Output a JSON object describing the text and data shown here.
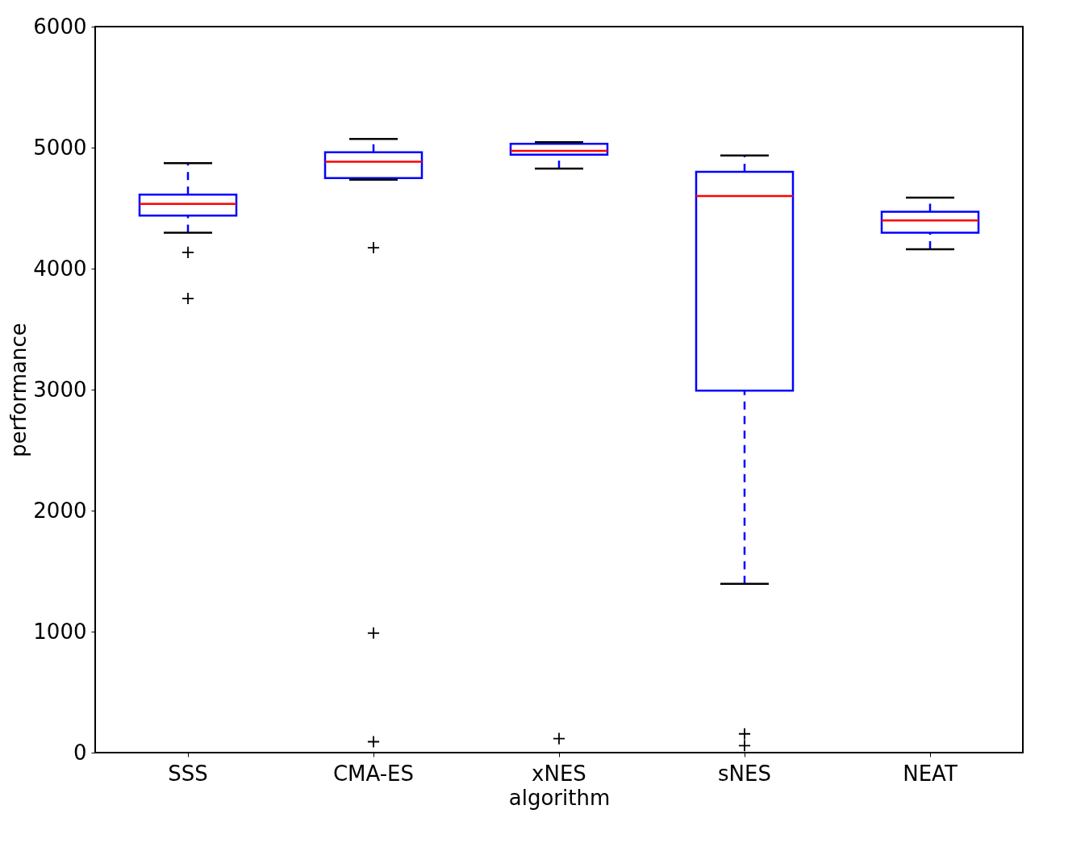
{
  "chart_data": {
    "type": "box",
    "xlabel": "algorithm",
    "ylabel": "performance",
    "categories": [
      "SSS",
      "CMA-ES",
      "xNES",
      "sNES",
      "NEAT"
    ],
    "boxes": [
      {
        "low": 4296,
        "q1": 4438,
        "median": 4535,
        "q3": 4612,
        "high": 4871,
        "outliers": [
          4134,
          3753
        ]
      },
      {
        "low": 4735,
        "q1": 4748,
        "median": 4884,
        "q3": 4961,
        "high": 5071,
        "outliers": [
          4173,
          988,
          90
        ]
      },
      {
        "low": 4826,
        "q1": 4942,
        "median": 4974,
        "q3": 5032,
        "high": 5045,
        "outliers": [
          116
        ]
      },
      {
        "low": 1395,
        "q1": 2991,
        "median": 4600,
        "q3": 4800,
        "high": 4935,
        "outliers": [
          155,
          58
        ]
      },
      {
        "low": 4160,
        "q1": 4296,
        "median": 4399,
        "q3": 4470,
        "high": 4587
      }
    ],
    "ylim": [
      0,
      6000
    ],
    "yticks": [
      0,
      1000,
      2000,
      3000,
      4000,
      5000,
      6000
    ],
    "grid": false
  }
}
